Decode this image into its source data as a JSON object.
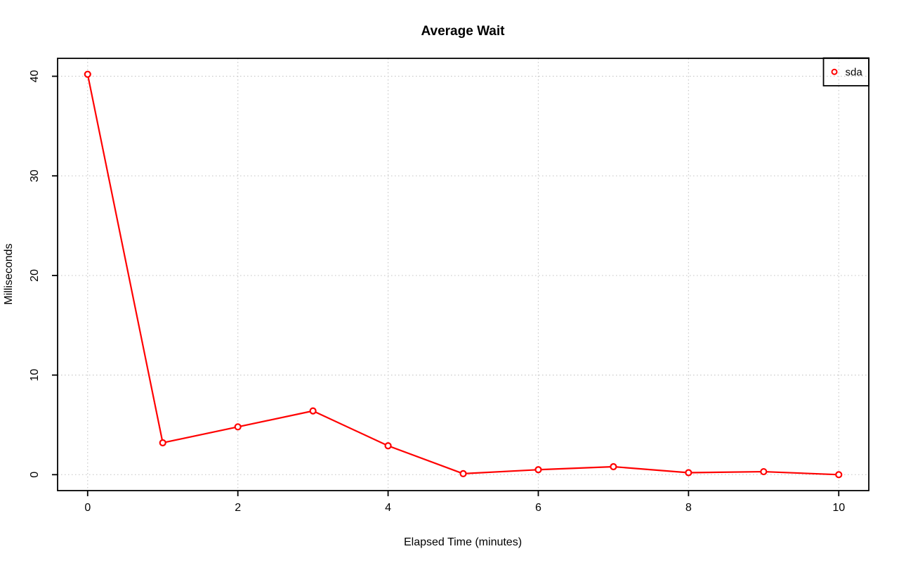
{
  "chart_data": {
    "type": "line",
    "title": "Average Wait",
    "xlabel": "Elapsed Time (minutes)",
    "ylabel": "Milliseconds",
    "x": [
      0,
      1,
      2,
      3,
      4,
      5,
      6,
      7,
      8,
      9,
      10
    ],
    "series": [
      {
        "name": "sda",
        "color": "#ff0000",
        "marker": "open-circle",
        "values": [
          40.2,
          3.2,
          4.8,
          6.4,
          2.9,
          0.1,
          0.5,
          0.8,
          0.2,
          0.3,
          0.0
        ]
      }
    ],
    "xticks": [
      0,
      2,
      4,
      6,
      8,
      10
    ],
    "yticks": [
      0,
      10,
      20,
      30,
      40
    ],
    "xlim": [
      -0.4,
      10.4
    ],
    "ylim": [
      -1.6,
      41.8
    ],
    "grid": "dotted",
    "grid_color": "#c9c9c9",
    "box_color": "#000000",
    "background": "#ffffff",
    "legend_position": "topright",
    "y_tick_labels_rotated": true
  }
}
